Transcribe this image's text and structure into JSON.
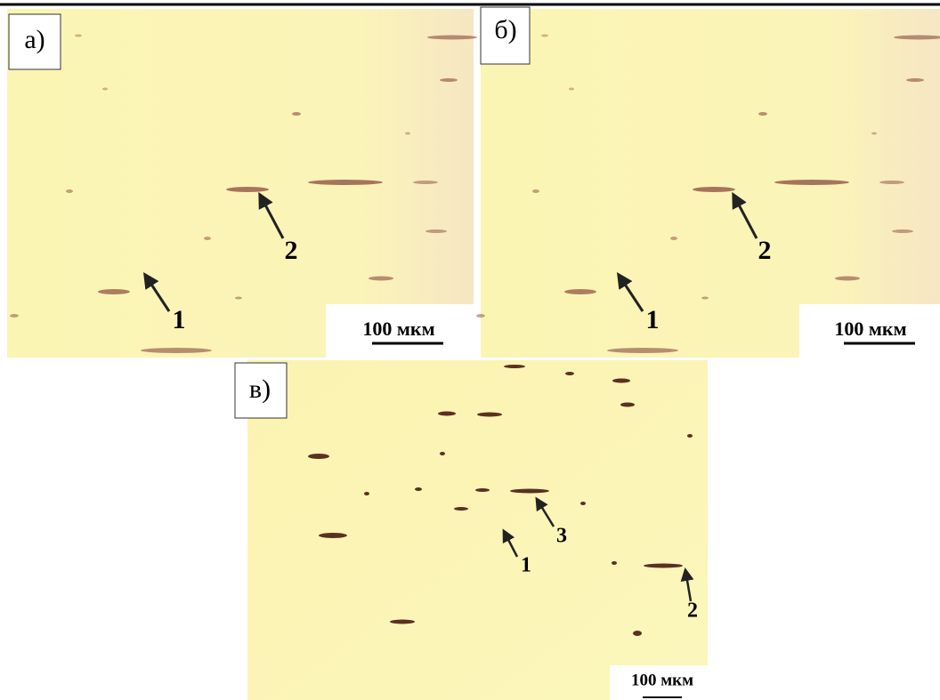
{
  "panels": [
    {
      "label": "а)",
      "markers": [
        "1",
        "2"
      ],
      "scale_bar": "100 мкм"
    },
    {
      "label": "б)",
      "markers": [
        "1",
        "2"
      ],
      "scale_bar": "100 мкм"
    },
    {
      "label": "в)",
      "markers": [
        "1",
        "2",
        "3"
      ],
      "scale_bar": "100 мкм"
    }
  ]
}
